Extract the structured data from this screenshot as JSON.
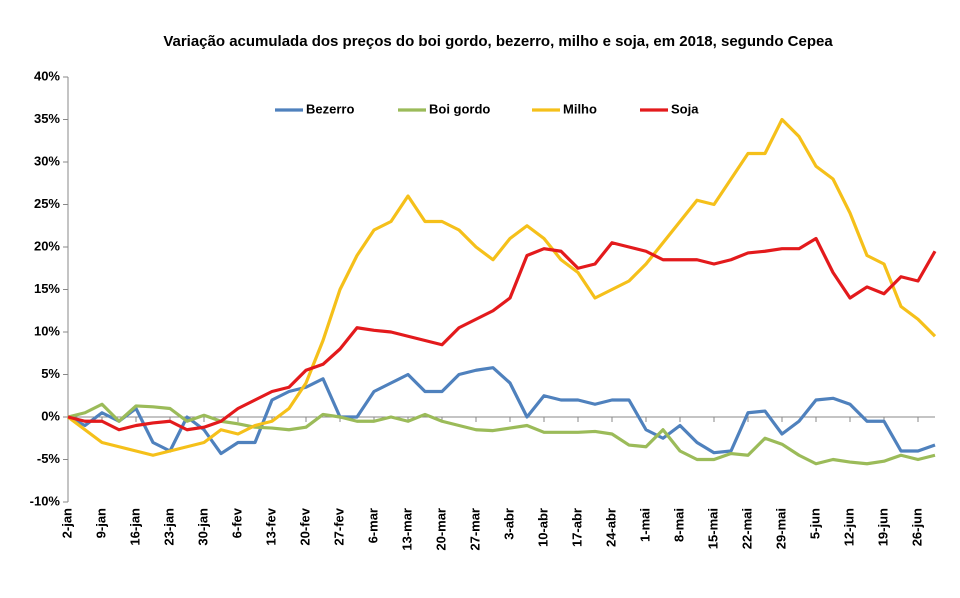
{
  "chart_data": {
    "type": "line",
    "title": "Variação acumulada dos preços do boi gordo, bezerro, milho e soja, em 2018, segundo  Cepea",
    "categories": [
      "2-jan",
      null,
      "9-jan",
      null,
      "16-jan",
      null,
      "23-jan",
      null,
      "30-jan",
      null,
      "6-fev",
      null,
      "13-fev",
      null,
      "20-fev",
      null,
      "27-fev",
      null,
      "6-mar",
      null,
      "13-mar",
      null,
      "20-mar",
      null,
      "27-mar",
      null,
      "3-abr",
      null,
      "10-abr",
      null,
      "17-abr",
      null,
      "24-abr",
      null,
      "1-mai",
      null,
      "8-mai",
      null,
      "15-mai",
      null,
      "22-mai",
      null,
      "29-mai",
      null,
      "5-jun",
      null,
      "12-jun",
      null,
      "19-jun",
      null,
      "26-jun",
      null
    ],
    "series": [
      {
        "name": "Bezerro",
        "color": "#4f81bd",
        "values": [
          0,
          -1,
          0.5,
          -0.5,
          1,
          -3,
          -4,
          0,
          -1.5,
          -4.3,
          -3,
          -3,
          2,
          3,
          3.5,
          4.5,
          0,
          0,
          3,
          4,
          5,
          3,
          3,
          5,
          5.5,
          5.8,
          4,
          0,
          2.5,
          2,
          2,
          1.5,
          2,
          2,
          -1.5,
          -2.5,
          -1,
          -3,
          -4.2,
          -4,
          0.5,
          0.7,
          -2,
          -0.5,
          2,
          2.2,
          1.5,
          -0.5,
          -0.5,
          -4,
          -4,
          -3.3
        ]
      },
      {
        "name": "Boi gordo",
        "color": "#9bbb59",
        "values": [
          0,
          0.5,
          1.5,
          -0.5,
          1.3,
          1.2,
          1,
          -0.5,
          0.2,
          -0.5,
          -0.8,
          -1.2,
          -1.3,
          -1.5,
          -1.2,
          0.3,
          0,
          -0.5,
          -0.5,
          0,
          -0.5,
          0.3,
          -0.5,
          -1,
          -1.5,
          -1.6,
          -1.3,
          -1,
          -1.8,
          -1.8,
          -1.8,
          -1.7,
          -2,
          -3.3,
          -3.5,
          -1.5,
          -4,
          -5,
          -5,
          -4.3,
          -4.5,
          -2.5,
          -3.2,
          -4.5,
          -5.5,
          -5,
          -5.3,
          -5.5,
          -5.2,
          -4.5,
          -5,
          -4.5
        ]
      },
      {
        "name": "Milho",
        "color": "#f5c01a",
        "values": [
          0,
          -1.5,
          -3,
          -3.5,
          -4,
          -4.5,
          -4,
          -3.5,
          -3,
          -1.5,
          -2,
          -1,
          -0.5,
          1,
          4,
          9,
          15,
          19,
          22,
          23,
          26,
          23,
          23,
          22,
          20,
          18.5,
          21,
          22.5,
          21,
          18.5,
          17,
          14,
          15,
          16,
          18,
          20.5,
          23,
          25.5,
          25,
          28,
          31,
          31,
          35,
          33,
          29.5,
          28,
          24,
          19,
          18,
          13,
          11.5,
          9.5
        ]
      },
      {
        "name": "Soja",
        "color": "#e31a1c",
        "values": [
          0,
          -0.5,
          -0.5,
          -1.5,
          -1,
          -0.7,
          -0.5,
          -1.5,
          -1.2,
          -0.5,
          1,
          2,
          3,
          3.5,
          5.5,
          6.2,
          8,
          10.5,
          10.2,
          10,
          9.5,
          9,
          8.5,
          10.5,
          11.5,
          12.5,
          14,
          19,
          19.8,
          19.5,
          17.5,
          18,
          20.5,
          20,
          19.5,
          18.5,
          18.5,
          18.5,
          18,
          18.5,
          19.3,
          19.5,
          19.8,
          19.8,
          21,
          17,
          14,
          15.3,
          14.5,
          16.5,
          16,
          19.5
        ]
      }
    ],
    "ylim": [
      -10,
      40
    ],
    "yticks": [
      {
        "value": -10,
        "label": "-10%"
      },
      {
        "value": -5,
        "label": "-5%"
      },
      {
        "value": 0,
        "label": "0%"
      },
      {
        "value": 5,
        "label": "5%"
      },
      {
        "value": 10,
        "label": "10%"
      },
      {
        "value": 15,
        "label": "15%"
      },
      {
        "value": 20,
        "label": "20%"
      },
      {
        "value": 25,
        "label": "25%"
      },
      {
        "value": 30,
        "label": "30%"
      },
      {
        "value": 35,
        "label": "35%"
      },
      {
        "value": 40,
        "label": "40%"
      }
    ],
    "legend": "top"
  }
}
